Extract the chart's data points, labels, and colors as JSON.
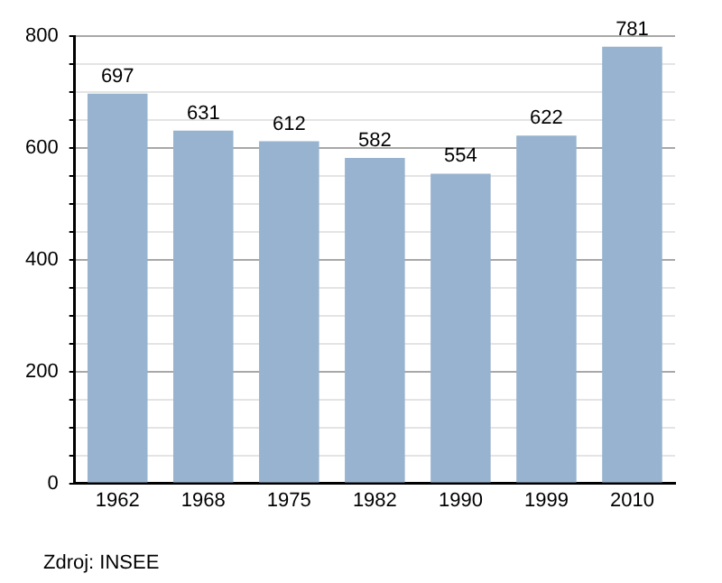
{
  "chart_data": {
    "type": "bar",
    "categories": [
      "1962",
      "1968",
      "1975",
      "1982",
      "1990",
      "1999",
      "2010"
    ],
    "values": [
      697,
      631,
      612,
      582,
      554,
      622,
      781
    ],
    "color": "#98b3cf",
    "data_labels": true,
    "ylim": [
      0,
      800
    ],
    "yticks": [
      0,
      {
        "value": 50,
        "label": null
      },
      {
        "value": 100,
        "label": null
      },
      {
        "value": 150,
        "label": null
      },
      200,
      {
        "value": 250,
        "label": null
      },
      {
        "value": 300,
        "label": null
      },
      {
        "value": 350,
        "label": null
      },
      400,
      {
        "value": 450,
        "label": null
      },
      {
        "value": 500,
        "label": null
      },
      {
        "value": 550,
        "label": null
      },
      600,
      {
        "value": 650,
        "label": null
      },
      {
        "value": 700,
        "label": null
      },
      {
        "value": 750,
        "label": null
      },
      800
    ],
    "grid": "y",
    "annotations": [
      "Zdroj: INSEE"
    ]
  }
}
